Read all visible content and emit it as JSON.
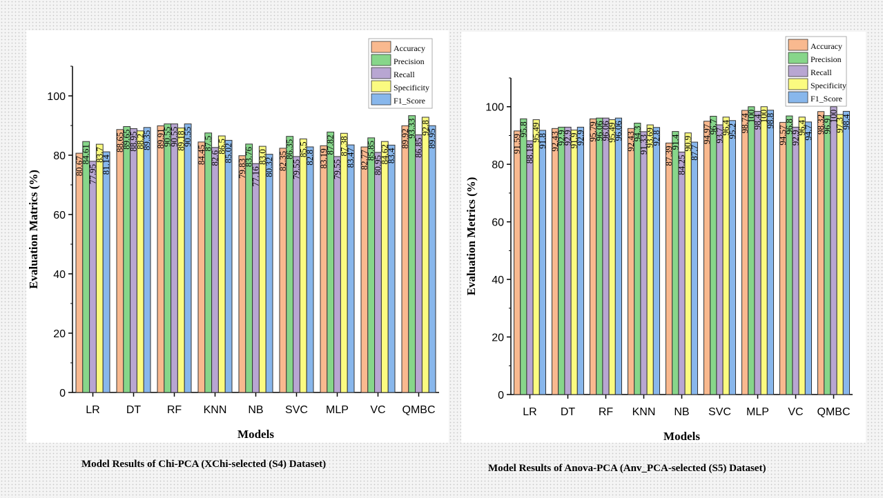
{
  "colors": {
    "Accuracy": "#f9b98f",
    "Precision": "#87d68a",
    "Recall": "#b8a6d2",
    "Specificity": "#fbfb80",
    "F1_Score": "#88b7ec"
  },
  "captions": {
    "left": "Model Results of Chi-PCA (XChi-selected (S4) Dataset)",
    "right": "Model Results of Anova-PCA (Anv_PCA-selected  (S5) Dataset)"
  },
  "chart_data": [
    {
      "type": "bar",
      "xlabel": "Models",
      "ylabel": "Evaluation Matrics (%)",
      "ylim": [
        0,
        110
      ],
      "yticks": [
        0,
        20,
        40,
        60,
        80,
        100
      ],
      "legend_position": "top-right",
      "categories": [
        "LR",
        "DT",
        "RF",
        "KNN",
        "NB",
        "SVC",
        "MLP",
        "VC",
        "QMBC"
      ],
      "series": [
        {
          "name": "Accuracy",
          "values": [
            80.67,
            88.65,
            89.91,
            84.45,
            79.83,
            82.35,
            83.19,
            82.77,
            89.92
          ],
          "labels": [
            "80.67",
            "88.65",
            "89.91",
            "84.45",
            "79.83",
            "82.35",
            "83.19",
            "82.77",
            "89.92"
          ]
        },
        {
          "name": "Precision",
          "values": [
            84.61,
            89.65,
            90.55,
            87.5,
            83.76,
            86.35,
            87.82,
            85.85,
            93.33
          ],
          "labels": [
            "84.61",
            "89.65",
            "90.55",
            "87.5",
            "83.76",
            "86.35",
            "87.82",
            "85.85",
            "93.33"
          ]
        },
        {
          "name": "Recall",
          "values": [
            77.95,
            88.95,
            90.55,
            82.6,
            77.16,
            79.55,
            79.55,
            80.95,
            86.85
          ],
          "labels": [
            "77.95",
            "88.95",
            "90.55",
            "82.6",
            "77.16",
            "79.55",
            "79.55",
            "80.95",
            "86.85"
          ]
        },
        {
          "name": "Specificity",
          "values": [
            83.7,
            88.2,
            89.18,
            86.5,
            83.0,
            85.5,
            87.38,
            84.62,
            92.8
          ],
          "labels": [
            "83.7",
            "88.2",
            "89.18",
            "86.5",
            "83.0",
            "85.5",
            "87.38",
            "84.62",
            "92.8"
          ]
        },
        {
          "name": "F1_Score",
          "values": [
            81.14,
            89.35,
            90.55,
            85.02,
            80.32,
            82.8,
            83.47,
            83.4,
            89.95
          ],
          "labels": [
            "81.14",
            "89.35",
            "90.55",
            "85.02",
            "80.32",
            "82.8",
            "83.47",
            "83.4",
            "89.95"
          ]
        }
      ]
    },
    {
      "type": "bar",
      "xlabel": "Models",
      "ylabel": "Evaluation Metrics (%)",
      "ylim": [
        0,
        110
      ],
      "yticks": [
        0,
        20,
        40,
        60,
        80,
        100
      ],
      "legend_position": "top-right",
      "categories": [
        "LR",
        "DT",
        "RF",
        "KNN",
        "NB",
        "SVC",
        "MLP",
        "VC",
        "QMBC"
      ],
      "series": [
        {
          "name": "Accuracy",
          "values": [
            91.59,
            92.43,
            95.79,
            92.43,
            87.39,
            94.97,
            98.74,
            94.57,
            98.32
          ],
          "labels": [
            "91.59",
            "92.43",
            "95.79",
            "92.43",
            "87.39",
            "94.97",
            "98.74",
            "94.57",
            "98.32"
          ]
        },
        {
          "name": "Precision",
          "values": [
            95.8,
            92.9,
            96.06,
            94.3,
            91.4,
            96.7,
            100,
            96.8,
            96.9
          ],
          "labels": [
            "95.8",
            "92.9",
            "96.06",
            "94.3",
            "91.4",
            "96.7",
            "100",
            "96.8",
            "96.9"
          ]
        },
        {
          "name": "Recall",
          "values": [
            88.18,
            92.9,
            96.06,
            91.33,
            84.25,
            93.7,
            98.4,
            92.9,
            100
          ],
          "labels": [
            "88.18",
            "92.9",
            "96.06",
            "91.33",
            "84.25",
            "93.7",
            "98.4",
            "92.9",
            "100"
          ]
        },
        {
          "name": "Specificity",
          "values": [
            95.49,
            91.9,
            95.49,
            93.69,
            90.9,
            96.4,
            100,
            96.4,
            97.3
          ],
          "labels": [
            "95.49",
            "91.9",
            "95.49",
            "93.69",
            "90.9",
            "96.4",
            "100",
            "96.4",
            "97.3"
          ]
        },
        {
          "name": "F1_Score",
          "values": [
            91.8,
            92.9,
            96.06,
            92.8,
            87.7,
            95.2,
            98.8,
            94.7,
            98.4
          ],
          "labels": [
            "91.8",
            "92.9",
            "96.06",
            "92.8",
            "87.7",
            "95.2",
            "98.8",
            "94.7",
            "98.4"
          ]
        }
      ]
    }
  ]
}
